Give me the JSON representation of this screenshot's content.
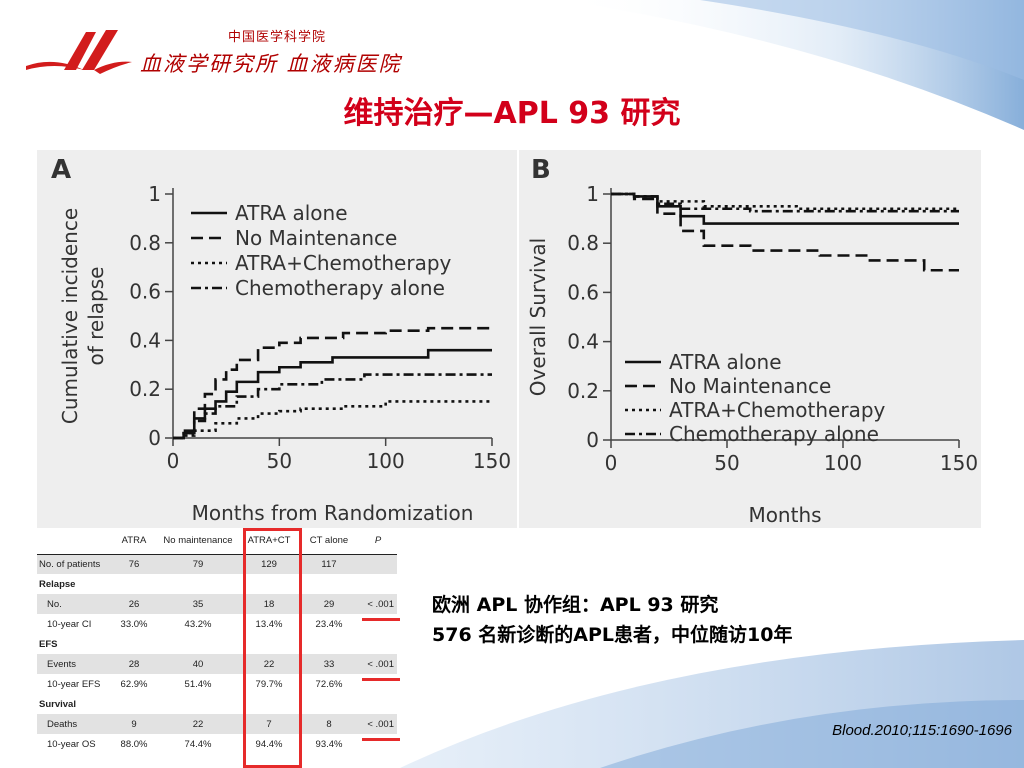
{
  "header": {
    "institute_line1": "中国医学科学院",
    "institute_line2": "血液学研究所  血液病医院",
    "title": "维持治疗—APL 93 研究"
  },
  "colors": {
    "title": "#d2001a",
    "highlight": "#e62a2a",
    "logo": "#d21c1c"
  },
  "chart_data": [
    {
      "type": "line",
      "panel_label": "A",
      "xlabel": "Months from Randomization",
      "ylabel": "Cumulative incidence\nof relapse",
      "xlim": [
        0,
        150
      ],
      "ylim": [
        0,
        1
      ],
      "xticks": [
        "0",
        "50",
        "100",
        "150"
      ],
      "yticks": [
        "0",
        "0.2",
        "0.4",
        "0.6",
        "0.8",
        "1"
      ],
      "legend_position": "upper-middle",
      "series": [
        {
          "name": "ATRA alone",
          "style": "solid",
          "points": [
            [
              0,
              0
            ],
            [
              5,
              0.02
            ],
            [
              10,
              0.08
            ],
            [
              15,
              0.12
            ],
            [
              20,
              0.15
            ],
            [
              25,
              0.19
            ],
            [
              30,
              0.23
            ],
            [
              40,
              0.27
            ],
            [
              50,
              0.29
            ],
            [
              60,
              0.31
            ],
            [
              75,
              0.33
            ],
            [
              90,
              0.33
            ],
            [
              110,
              0.33
            ],
            [
              120,
              0.36
            ],
            [
              150,
              0.36
            ]
          ]
        },
        {
          "name": "No Maintenance",
          "style": "dashed",
          "points": [
            [
              0,
              0
            ],
            [
              5,
              0.03
            ],
            [
              10,
              0.12
            ],
            [
              15,
              0.18
            ],
            [
              20,
              0.24
            ],
            [
              25,
              0.28
            ],
            [
              30,
              0.32
            ],
            [
              40,
              0.37
            ],
            [
              50,
              0.39
            ],
            [
              60,
              0.41
            ],
            [
              80,
              0.43
            ],
            [
              100,
              0.44
            ],
            [
              120,
              0.45
            ],
            [
              150,
              0.45
            ]
          ]
        },
        {
          "name": "ATRA+Chemotherapy",
          "style": "dotted",
          "points": [
            [
              0,
              0
            ],
            [
              5,
              0.01
            ],
            [
              10,
              0.03
            ],
            [
              20,
              0.06
            ],
            [
              30,
              0.08
            ],
            [
              40,
              0.1
            ],
            [
              50,
              0.11
            ],
            [
              60,
              0.12
            ],
            [
              80,
              0.13
            ],
            [
              100,
              0.15
            ],
            [
              150,
              0.15
            ]
          ]
        },
        {
          "name": "Chemotherapy alone",
          "style": "dashdot",
          "points": [
            [
              0,
              0
            ],
            [
              5,
              0.02
            ],
            [
              10,
              0.07
            ],
            [
              15,
              0.1
            ],
            [
              20,
              0.13
            ],
            [
              30,
              0.17
            ],
            [
              40,
              0.2
            ],
            [
              50,
              0.22
            ],
            [
              70,
              0.24
            ],
            [
              90,
              0.26
            ],
            [
              150,
              0.26
            ]
          ]
        }
      ]
    },
    {
      "type": "line",
      "panel_label": "B",
      "xlabel": "Months",
      "ylabel": "Overall Survival",
      "xlim": [
        0,
        150
      ],
      "ylim": [
        0,
        1
      ],
      "xticks": [
        "0",
        "50",
        "100",
        "150"
      ],
      "yticks": [
        "0",
        "0.2",
        "0.4",
        "0.6",
        "0.8",
        "1"
      ],
      "legend_position": "lower-left",
      "series": [
        {
          "name": "ATRA alone",
          "style": "solid",
          "points": [
            [
              0,
              1
            ],
            [
              10,
              0.99
            ],
            [
              20,
              0.95
            ],
            [
              30,
              0.91
            ],
            [
              40,
              0.88
            ],
            [
              150,
              0.88
            ]
          ]
        },
        {
          "name": "No Maintenance",
          "style": "dashed",
          "points": [
            [
              0,
              1
            ],
            [
              10,
              0.98
            ],
            [
              20,
              0.92
            ],
            [
              30,
              0.85
            ],
            [
              40,
              0.79
            ],
            [
              60,
              0.77
            ],
            [
              90,
              0.75
            ],
            [
              110,
              0.73
            ],
            [
              135,
              0.69
            ],
            [
              150,
              0.69
            ]
          ]
        },
        {
          "name": "ATRA+Chemotherapy",
          "style": "dotted",
          "points": [
            [
              0,
              1
            ],
            [
              10,
              0.99
            ],
            [
              20,
              0.97
            ],
            [
              40,
              0.95
            ],
            [
              80,
              0.94
            ],
            [
              150,
              0.94
            ]
          ]
        },
        {
          "name": "Chemotherapy alone",
          "style": "dashdot",
          "points": [
            [
              0,
              1
            ],
            [
              10,
              0.99
            ],
            [
              20,
              0.96
            ],
            [
              30,
              0.94
            ],
            [
              60,
              0.93
            ],
            [
              100,
              0.93
            ],
            [
              150,
              0.93
            ]
          ]
        }
      ]
    }
  ],
  "table": {
    "headers": [
      "",
      "ATRA",
      "No maintenance",
      "ATRA+CT",
      "CT alone",
      "P"
    ],
    "rows": [
      {
        "kind": "data",
        "shade": true,
        "label": "No. of patients",
        "indent": false,
        "cells": [
          "76",
          "79",
          "129",
          "117",
          ""
        ]
      },
      {
        "kind": "section",
        "shade": false,
        "label": "Relapse"
      },
      {
        "kind": "data",
        "shade": true,
        "label": "No.",
        "indent": true,
        "cells": [
          "26",
          "35",
          "18",
          "29",
          "< .001"
        ]
      },
      {
        "kind": "data",
        "shade": false,
        "label": "10-year CI",
        "indent": true,
        "cells": [
          "33.0%",
          "43.2%",
          "13.4%",
          "23.4%",
          ""
        ]
      },
      {
        "kind": "section",
        "shade": false,
        "label": "EFS"
      },
      {
        "kind": "data",
        "shade": true,
        "label": "Events",
        "indent": true,
        "cells": [
          "28",
          "40",
          "22",
          "33",
          "< .001"
        ]
      },
      {
        "kind": "data",
        "shade": false,
        "label": "10-year EFS",
        "indent": true,
        "cells": [
          "62.9%",
          "51.4%",
          "79.7%",
          "72.6%",
          ""
        ]
      },
      {
        "kind": "section",
        "shade": false,
        "label": "Survival"
      },
      {
        "kind": "data",
        "shade": true,
        "label": "Deaths",
        "indent": true,
        "cells": [
          "9",
          "22",
          "7",
          "8",
          "< .001"
        ]
      },
      {
        "kind": "data",
        "shade": false,
        "label": "10-year OS",
        "indent": true,
        "cells": [
          "88.0%",
          "74.4%",
          "94.4%",
          "93.4%",
          ""
        ]
      }
    ]
  },
  "study": {
    "line1": "欧洲 APL 协作组：APL 93 研究",
    "line2": "576 名新诊断的APL患者，中位随访10年"
  },
  "citation": "Blood.2010;115:1690-1696"
}
